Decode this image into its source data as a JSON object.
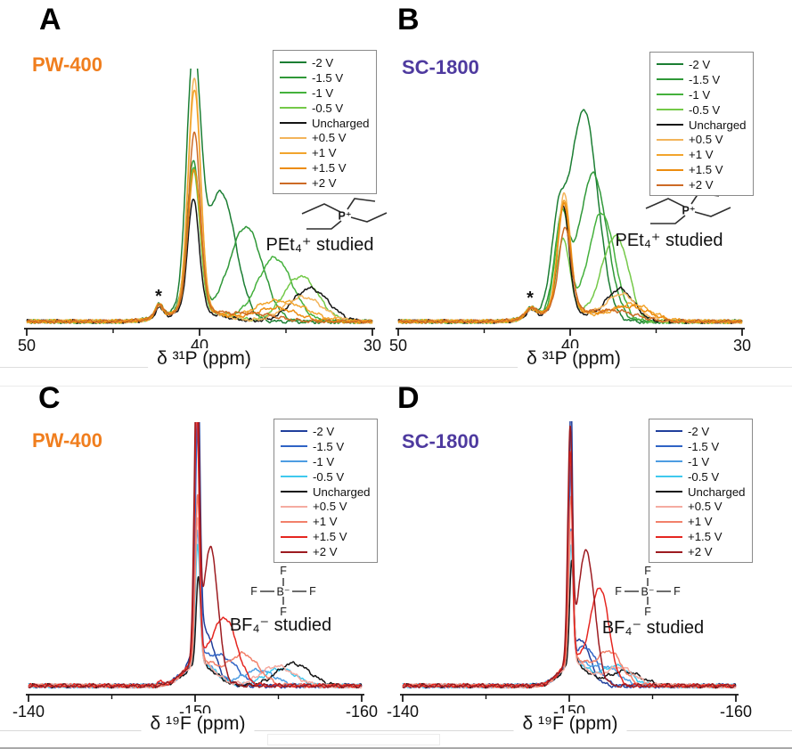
{
  "meta": {
    "peak_format": "[center_ppm, relative_height, sigma_ppm]"
  },
  "chart_data": [
    {
      "id": "A",
      "type": "line",
      "panel_label": "A",
      "material": "PW-400",
      "material_color": "#f07e1e",
      "xlabel": "δ ³¹P (ppm)",
      "ylabel": "",
      "legend_position": "top-right",
      "grid": false,
      "x_axis": {
        "left_value": 50,
        "right_value": 30,
        "major_ticks": [
          {
            "value": 50,
            "label": "50"
          },
          {
            "value": 40,
            "label": "40"
          },
          {
            "value": 30,
            "label": "30"
          }
        ],
        "minor_ticks": [
          45,
          35
        ]
      },
      "annotation": {
        "text": "*",
        "ppm": 42.35
      },
      "structure_caption": "PEt₄⁺ studied",
      "molecule": {
        "center_atom": "P⁺"
      },
      "series": [
        {
          "label": "-2 V",
          "color": "#1b7e33",
          "peaks": [
            [
              40.35,
              1.0,
              0.4
            ],
            [
              38.75,
              0.5,
              0.85
            ],
            [
              42.35,
              0.05,
              0.22
            ],
            [
              40.3,
              0.05,
              1.5
            ]
          ]
        },
        {
          "label": "-1.5 V",
          "color": "#2f9838",
          "peaks": [
            [
              40.35,
              0.6,
              0.38
            ],
            [
              37.3,
              0.38,
              0.95
            ],
            [
              42.35,
              0.05,
              0.22
            ],
            [
              40.3,
              0.05,
              1.5
            ]
          ]
        },
        {
          "label": "-1 V",
          "color": "#44b13c",
          "peaks": [
            [
              40.35,
              0.58,
              0.36
            ],
            [
              35.65,
              0.26,
              1.0
            ],
            [
              42.35,
              0.05,
              0.22
            ],
            [
              40.3,
              0.05,
              1.5
            ]
          ]
        },
        {
          "label": "-0.5 V",
          "color": "#74c948",
          "peaks": [
            [
              40.35,
              0.57,
              0.36
            ],
            [
              34.15,
              0.185,
              1.0
            ],
            [
              42.35,
              0.05,
              0.22
            ],
            [
              40.3,
              0.05,
              1.5
            ]
          ]
        },
        {
          "label": "Uncharged",
          "color": "#141414",
          "peaks": [
            [
              40.35,
              0.46,
              0.33
            ],
            [
              33.6,
              0.135,
              1.05
            ],
            [
              42.35,
              0.04,
              0.22
            ],
            [
              40.3,
              0.04,
              1.5
            ]
          ]
        },
        {
          "label": "+0.5 V",
          "color": "#f3b45a",
          "peaks": [
            [
              40.3,
              0.94,
              0.36
            ],
            [
              34.0,
              0.1,
              1.1
            ],
            [
              42.35,
              0.05,
              0.22
            ],
            [
              40.3,
              0.05,
              1.5
            ]
          ]
        },
        {
          "label": "+1 V",
          "color": "#f2a42c",
          "peaks": [
            [
              40.3,
              0.9,
              0.36
            ],
            [
              34.6,
              0.06,
              1.2
            ],
            [
              36.2,
              0.05,
              1.0
            ],
            [
              42.35,
              0.05,
              0.22
            ],
            [
              40.3,
              0.05,
              1.5
            ]
          ]
        },
        {
          "label": "+1.5 V",
          "color": "#ec8c0f",
          "peaks": [
            [
              40.3,
              0.57,
              0.36
            ],
            [
              35.6,
              0.055,
              1.2
            ],
            [
              42.35,
              0.05,
              0.22
            ],
            [
              40.3,
              0.05,
              1.5
            ]
          ]
        },
        {
          "label": "+2 V",
          "color": "#cd6a25",
          "peaks": [
            [
              40.3,
              0.72,
              0.34
            ],
            [
              36.8,
              0.03,
              1.3
            ],
            [
              42.35,
              0.05,
              0.22
            ],
            [
              40.3,
              0.05,
              1.5
            ]
          ]
        }
      ]
    },
    {
      "id": "B",
      "type": "line",
      "panel_label": "B",
      "material": "SC-1800",
      "material_color": "#4e3a9f",
      "xlabel": "δ ³¹P (ppm)",
      "ylabel": "",
      "legend_position": "top-right",
      "grid": false,
      "x_axis": {
        "left_value": 50,
        "right_value": 30,
        "major_ticks": [
          {
            "value": 50,
            "label": "50"
          },
          {
            "value": 40,
            "label": "40"
          },
          {
            "value": 30,
            "label": "30"
          }
        ],
        "minor_ticks": [
          45,
          35
        ]
      },
      "annotation": {
        "text": "*",
        "ppm": 42.3
      },
      "structure_caption": "PEt₄⁺ studied",
      "molecule": {
        "center_atom": "P⁺"
      },
      "series": [
        {
          "label": "-2 V",
          "color": "#1b7e33",
          "peaks": [
            [
              40.7,
              0.3,
              0.42
            ],
            [
              39.2,
              0.83,
              0.8
            ],
            [
              42.3,
              0.035,
              0.3
            ],
            [
              40.4,
              0.05,
              1.4
            ]
          ]
        },
        {
          "label": "-1.5 V",
          "color": "#2f9838",
          "peaks": [
            [
              40.5,
              0.36,
              0.4
            ],
            [
              38.65,
              0.58,
              0.8
            ],
            [
              42.3,
              0.035,
              0.3
            ],
            [
              40.4,
              0.05,
              1.4
            ]
          ]
        },
        {
          "label": "-1 V",
          "color": "#44b13c",
          "peaks": [
            [
              40.45,
              0.41,
              0.38
            ],
            [
              38.15,
              0.43,
              0.75
            ],
            [
              42.3,
              0.035,
              0.3
            ],
            [
              40.4,
              0.05,
              1.4
            ]
          ]
        },
        {
          "label": "-0.5 V",
          "color": "#74c948",
          "peaks": [
            [
              40.4,
              0.29,
              0.36
            ],
            [
              37.55,
              0.3,
              0.7
            ],
            [
              36.8,
              0.1,
              0.5
            ],
            [
              42.3,
              0.035,
              0.3
            ],
            [
              40.4,
              0.05,
              1.4
            ]
          ]
        },
        {
          "label": "Uncharged",
          "color": "#141414",
          "peaks": [
            [
              40.4,
              0.43,
              0.34
            ],
            [
              37.1,
              0.13,
              0.8
            ],
            [
              42.3,
              0.03,
              0.3
            ],
            [
              40.4,
              0.04,
              1.4
            ]
          ]
        },
        {
          "label": "+0.5 V",
          "color": "#f3b45a",
          "peaks": [
            [
              40.35,
              0.47,
              0.36
            ],
            [
              37.0,
              0.11,
              0.9
            ],
            [
              42.3,
              0.035,
              0.3
            ],
            [
              40.4,
              0.05,
              1.4
            ]
          ]
        },
        {
          "label": "+1 V",
          "color": "#f2a42c",
          "peaks": [
            [
              40.35,
              0.45,
              0.36
            ],
            [
              36.4,
              0.07,
              1.1
            ],
            [
              42.3,
              0.035,
              0.3
            ],
            [
              40.4,
              0.05,
              1.4
            ]
          ]
        },
        {
          "label": "+1.5 V",
          "color": "#ec8c0f",
          "peaks": [
            [
              40.35,
              0.43,
              0.36
            ],
            [
              36.6,
              0.06,
              1.2
            ],
            [
              42.3,
              0.035,
              0.3
            ],
            [
              40.4,
              0.05,
              1.4
            ]
          ]
        },
        {
          "label": "+2 V",
          "color": "#cd6a25",
          "peaks": [
            [
              40.3,
              0.33,
              0.36
            ],
            [
              37.3,
              0.04,
              1.2
            ],
            [
              42.3,
              0.035,
              0.3
            ],
            [
              40.4,
              0.05,
              1.4
            ]
          ]
        }
      ]
    },
    {
      "id": "C",
      "type": "line",
      "panel_label": "C",
      "material": "PW-400",
      "material_color": "#f07e1e",
      "xlabel": "δ ¹⁹F (ppm)",
      "ylabel": "",
      "legend_position": "top-right",
      "grid": false,
      "x_axis": {
        "left_value": -140,
        "right_value": -160,
        "major_ticks": [
          {
            "value": -140,
            "label": "-140"
          },
          {
            "value": -150,
            "label": "-150"
          },
          {
            "value": -160,
            "label": "-160"
          }
        ],
        "minor_ticks": [
          -145,
          -155
        ]
      },
      "structure_caption": "BF₄⁻ studied",
      "molecule": {
        "center_atom": "B⁻",
        "outer_atom": "F"
      },
      "series": [
        {
          "label": "-2 V",
          "color": "#203f9c",
          "peaks": [
            [
              -150.15,
              1.08,
              0.14
            ],
            [
              -150.6,
              0.12,
              0.5
            ],
            [
              -150.3,
              0.1,
              0.9
            ]
          ]
        },
        {
          "label": "-1.5 V",
          "color": "#2f63c5",
          "peaks": [
            [
              -150.15,
              0.9,
              0.14
            ],
            [
              -151.9,
              0.085,
              0.8
            ],
            [
              -150.3,
              0.1,
              0.9
            ]
          ]
        },
        {
          "label": "-1 V",
          "color": "#4d9de2",
          "peaks": [
            [
              -150.15,
              0.5,
              0.14
            ],
            [
              -153.8,
              0.06,
              0.95
            ],
            [
              -150.3,
              0.09,
              0.9
            ]
          ]
        },
        {
          "label": "-0.5 V",
          "color": "#3fc9ee",
          "peaks": [
            [
              -150.15,
              0.45,
              0.14
            ],
            [
              -155.1,
              0.065,
              0.95
            ],
            [
              -150.3,
              0.09,
              0.9
            ]
          ]
        },
        {
          "label": "Uncharged",
          "color": "#141414",
          "peaks": [
            [
              -150.2,
              0.34,
              0.14
            ],
            [
              -155.9,
              0.085,
              1.0
            ],
            [
              -150.3,
              0.08,
              0.9
            ]
          ]
        },
        {
          "label": "+0.5 V",
          "color": "#f5aba1",
          "peaks": [
            [
              -150.15,
              0.55,
              0.14
            ],
            [
              -154.9,
              0.075,
              1.0
            ],
            [
              -150.3,
              0.09,
              0.9
            ]
          ]
        },
        {
          "label": "+1 V",
          "color": "#f2806a",
          "peaks": [
            [
              -150.15,
              0.62,
              0.14
            ],
            [
              -152.9,
              0.12,
              0.9
            ],
            [
              -150.3,
              0.1,
              0.9
            ]
          ]
        },
        {
          "label": "+1.5 V",
          "color": "#e52620",
          "peaks": [
            [
              -150.1,
              0.95,
              0.14
            ],
            [
              -151.85,
              0.235,
              0.7
            ],
            [
              -147.9,
              0.015,
              0.12
            ],
            [
              -150.3,
              0.1,
              0.9
            ]
          ]
        },
        {
          "label": "+2 V",
          "color": "#9d1b20",
          "peaks": [
            [
              -150.1,
              1.08,
              0.15
            ],
            [
              -150.95,
              0.45,
              0.42
            ],
            [
              -150.3,
              0.1,
              0.9
            ]
          ]
        }
      ]
    },
    {
      "id": "D",
      "type": "line",
      "panel_label": "D",
      "material": "SC-1800",
      "material_color": "#4e3a9f",
      "xlabel": "δ ¹⁹F (ppm)",
      "ylabel": "",
      "legend_position": "top-right",
      "grid": false,
      "x_axis": {
        "left_value": -140,
        "right_value": -160,
        "major_ticks": [
          {
            "value": -140,
            "label": "-140"
          },
          {
            "value": -150,
            "label": "-150"
          },
          {
            "value": -160,
            "label": "-160"
          }
        ],
        "minor_ticks": [
          -145,
          -155
        ]
      },
      "structure_caption": "BF₄⁻ studied",
      "molecule": {
        "center_atom": "B⁻",
        "outer_atom": "F"
      },
      "series": [
        {
          "label": "-2 V",
          "color": "#203f9c",
          "peaks": [
            [
              -150.1,
              1.0,
              0.1
            ],
            [
              -150.8,
              0.1,
              0.45
            ],
            [
              -150.3,
              0.09,
              0.8
            ]
          ]
        },
        {
          "label": "-1.5 V",
          "color": "#2f63c5",
          "peaks": [
            [
              -150.1,
              0.74,
              0.12
            ],
            [
              -151.2,
              0.09,
              0.6
            ],
            [
              -150.3,
              0.09,
              0.8
            ]
          ]
        },
        {
          "label": "-1 V",
          "color": "#4d9de2",
          "peaks": [
            [
              -150.1,
              0.5,
              0.13
            ],
            [
              -152.2,
              0.07,
              0.8
            ],
            [
              -150.3,
              0.09,
              0.8
            ]
          ]
        },
        {
          "label": "-0.5 V",
          "color": "#3fc9ee",
          "peaks": [
            [
              -150.1,
              0.45,
              0.13
            ],
            [
              -152.8,
              0.075,
              0.85
            ],
            [
              -150.3,
              0.09,
              0.8
            ]
          ]
        },
        {
          "label": "Uncharged",
          "color": "#141414",
          "peaks": [
            [
              -150.15,
              0.4,
              0.13
            ],
            [
              -153.3,
              0.055,
              1.0
            ],
            [
              -150.3,
              0.08,
              0.8
            ]
          ]
        },
        {
          "label": "+0.5 V",
          "color": "#f5aba1",
          "peaks": [
            [
              -150.1,
              0.5,
              0.13
            ],
            [
              -153.0,
              0.07,
              0.9
            ],
            [
              -150.3,
              0.09,
              0.8
            ]
          ]
        },
        {
          "label": "+1 V",
          "color": "#f2806a",
          "peaks": [
            [
              -150.1,
              0.62,
              0.13
            ],
            [
              -152.4,
              0.13,
              0.75
            ],
            [
              -150.3,
              0.1,
              0.8
            ]
          ]
        },
        {
          "label": "+1.5 V",
          "color": "#e52620",
          "peaks": [
            [
              -150.05,
              0.8,
              0.13
            ],
            [
              -151.85,
              0.36,
              0.55
            ],
            [
              -150.3,
              0.1,
              0.8
            ]
          ]
        },
        {
          "label": "+2 V",
          "color": "#9d1b20",
          "peaks": [
            [
              -150.05,
              0.84,
              0.14
            ],
            [
              -151.05,
              0.45,
              0.48
            ],
            [
              -150.3,
              0.1,
              0.8
            ]
          ]
        }
      ]
    }
  ]
}
